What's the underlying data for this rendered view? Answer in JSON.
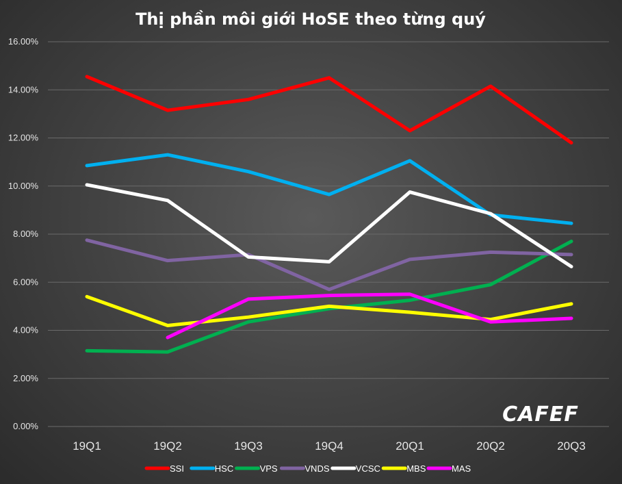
{
  "chart_data": {
    "type": "line",
    "title": "Thị phần môi giới HoSE theo từng quý",
    "categories": [
      "19Q1",
      "19Q2",
      "19Q3",
      "19Q4",
      "20Q1",
      "20Q2",
      "20Q3"
    ],
    "ylim": [
      0,
      16
    ],
    "yticks": [
      "0.00%",
      "2.00%",
      "4.00%",
      "6.00%",
      "8.00%",
      "10.00%",
      "12.00%",
      "14.00%",
      "16.00%"
    ],
    "grid": true,
    "legend_position": "bottom",
    "series": [
      {
        "name": "SSI",
        "color": "#ff0000",
        "values": [
          14.55,
          13.15,
          13.6,
          14.5,
          12.3,
          14.15,
          11.8
        ]
      },
      {
        "name": "HSC",
        "color": "#00b0f0",
        "values": [
          10.85,
          11.3,
          10.6,
          9.65,
          11.05,
          8.8,
          8.45
        ]
      },
      {
        "name": "VPS",
        "color": "#00b050",
        "values": [
          3.15,
          3.1,
          4.35,
          4.9,
          5.25,
          5.9,
          7.7
        ]
      },
      {
        "name": "VNDS",
        "color": "#8064a2",
        "values": [
          7.75,
          6.9,
          7.15,
          5.7,
          6.95,
          7.25,
          7.15
        ]
      },
      {
        "name": "VCSC",
        "color": "#ffffff",
        "values": [
          10.05,
          9.4,
          7.05,
          6.85,
          9.75,
          8.85,
          6.65
        ]
      },
      {
        "name": "MBS",
        "color": "#ffff00",
        "values": [
          5.4,
          4.2,
          4.55,
          5.0,
          4.75,
          4.45,
          5.1
        ]
      },
      {
        "name": "MAS",
        "color": "#ff00ff",
        "values": [
          null,
          3.7,
          5.3,
          5.45,
          5.5,
          4.35,
          4.5
        ]
      }
    ]
  },
  "watermark": {
    "text": "CAFEF"
  }
}
